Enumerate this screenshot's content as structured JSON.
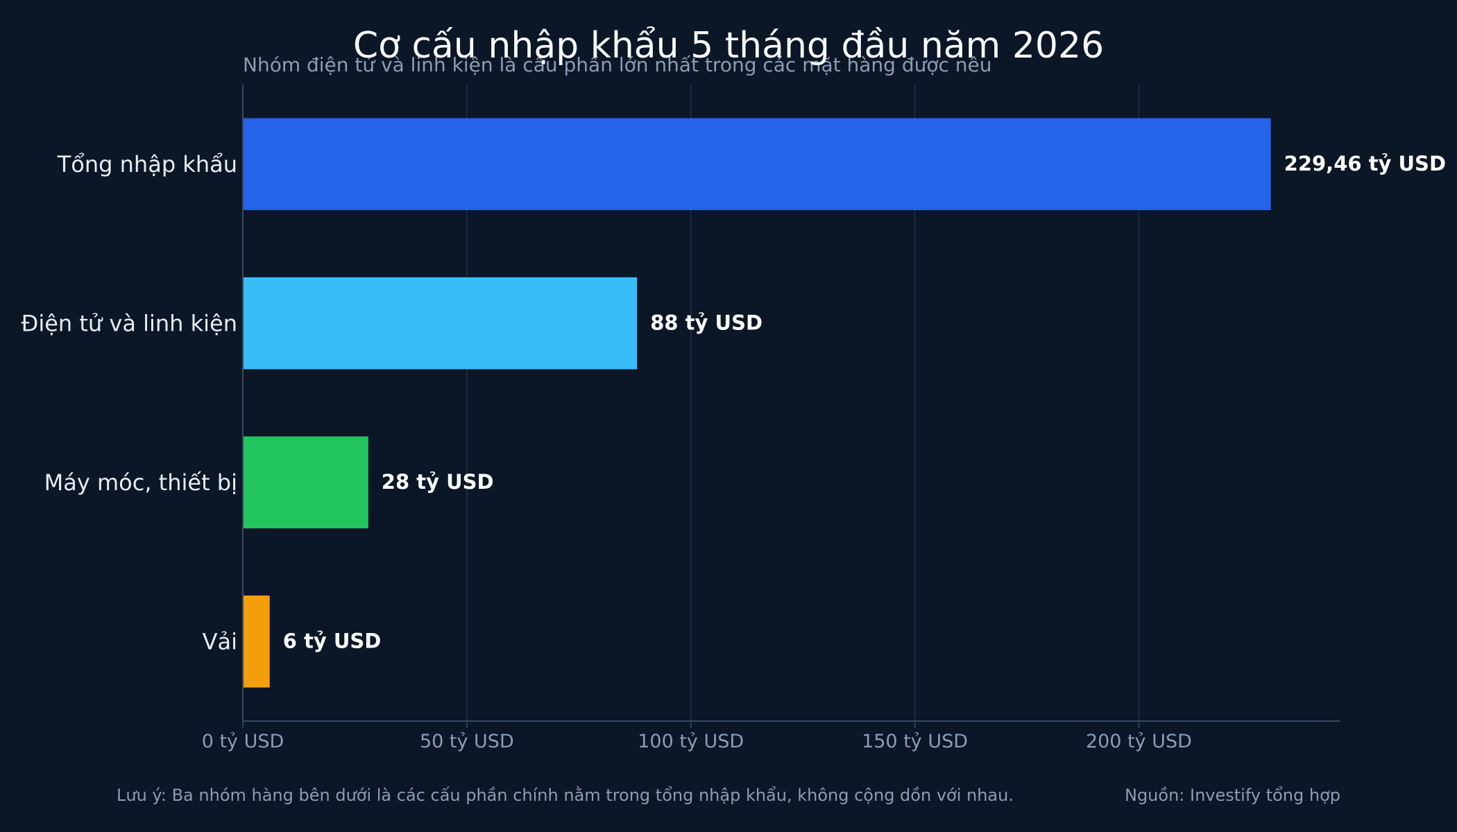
{
  "chart_data": {
    "type": "bar",
    "orientation": "horizontal",
    "title": "Cơ cấu nhập khẩu 5 tháng đầu năm 2026",
    "subtitle": "Nhóm điện tử và linh kiện là cấu phần lớn nhất trong các mặt hàng được nêu",
    "categories": [
      "Tổng nhập khẩu",
      "Điện tử và linh kiện",
      "Máy móc, thiết bị",
      "Vải"
    ],
    "values": [
      229.46,
      88,
      28,
      6
    ],
    "value_labels": [
      "229,46 tỷ USD",
      "88 tỷ USD",
      "28 tỷ USD",
      "6 tỷ USD"
    ],
    "colors": [
      "#2563eb",
      "#38bdf8",
      "#22c55e",
      "#f59e0b"
    ],
    "xlim": [
      0,
      245
    ],
    "xticks": [
      0,
      50,
      100,
      150,
      200
    ],
    "xtick_labels": [
      "0 tỷ USD",
      "50 tỷ USD",
      "100 tỷ USD",
      "150 tỷ USD",
      "200 tỷ USD"
    ],
    "grid": true,
    "legend": "none"
  },
  "footer": {
    "note": "Lưu ý: Ba nhóm hàng bên dưới là các cấu phần chính nằm trong tổng nhập khẩu, không cộng dồn với nhau.",
    "source": "Nguồn: Investify tổng hợp"
  }
}
